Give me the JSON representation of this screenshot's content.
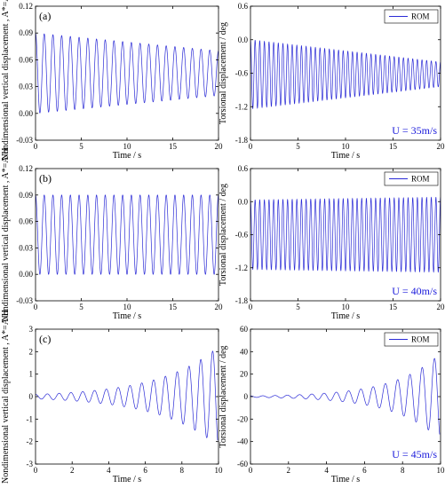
{
  "chart_data": [
    {
      "type": "line",
      "row": 0,
      "col": 0,
      "panel_label": "(a)",
      "xlabel": "Time / s",
      "ylabel": "Nondimensional vertical displacement , A*=A/H",
      "xlim": [
        0,
        20
      ],
      "ylim": [
        -0.03,
        0.12
      ],
      "xticks": [
        "0",
        "5",
        "10",
        "15",
        "20"
      ],
      "yticks": [
        "-0.03",
        "0.00",
        "0.03",
        "0.06",
        "0.09",
        "0.12"
      ],
      "series": [
        {
          "color": "#2b2bd6",
          "freq": 1.05,
          "mean": 0.045,
          "amp_start": 0.045,
          "amp_end": 0.025,
          "growth": "linear",
          "t_end": 20
        }
      ]
    },
    {
      "type": "line",
      "row": 0,
      "col": 1,
      "xlabel": "Time / s",
      "ylabel": "Torsional displacement / deg",
      "xlim": [
        0,
        20
      ],
      "ylim": [
        -1.8,
        0.6
      ],
      "xticks": [
        "0",
        "5",
        "10",
        "15",
        "20"
      ],
      "yticks": [
        "-1.8",
        "-1.2",
        "-0.6",
        "0.0",
        "0.6"
      ],
      "legend": [
        "ROM"
      ],
      "annotation": "U = 35m/s",
      "series": [
        {
          "name": "ROM",
          "color": "#2b2bd6",
          "freq": 2.05,
          "mean": -0.62,
          "amp_start": 0.62,
          "amp_end": 0.22,
          "growth": "linear",
          "t_end": 20
        }
      ]
    },
    {
      "type": "line",
      "row": 1,
      "col": 0,
      "panel_label": "(b)",
      "xlabel": "Time / s",
      "ylabel": "Nondimensional vertical displacement , A*=A/H",
      "xlim": [
        0,
        20
      ],
      "ylim": [
        -0.03,
        0.12
      ],
      "xticks": [
        "0",
        "5",
        "10",
        "15",
        "20"
      ],
      "yticks": [
        "-0.03",
        "0.00",
        "0.03",
        "0.06",
        "0.09",
        "0.12"
      ],
      "series": [
        {
          "color": "#2b2bd6",
          "freq": 1.05,
          "mean": 0.045,
          "amp_start": 0.045,
          "amp_end": 0.045,
          "growth": "linear",
          "t_end": 20
        }
      ]
    },
    {
      "type": "line",
      "row": 1,
      "col": 1,
      "xlabel": "Time / s",
      "ylabel": "Torsional displacement / deg",
      "xlim": [
        0,
        20
      ],
      "ylim": [
        -1.8,
        0.6
      ],
      "xticks": [
        "0",
        "5",
        "10",
        "15",
        "20"
      ],
      "yticks": [
        "-1.8",
        "-1.2",
        "-0.6",
        "0.0",
        "0.6"
      ],
      "legend": [
        "ROM"
      ],
      "annotation": "U = 40m/s",
      "series": [
        {
          "name": "ROM",
          "color": "#2b2bd6",
          "freq": 2.05,
          "mean": -0.6,
          "amp_start": 0.63,
          "amp_end": 0.68,
          "growth": "linear",
          "t_end": 20
        }
      ]
    },
    {
      "type": "line",
      "row": 2,
      "col": 0,
      "panel_label": "(c)",
      "xlabel": "Time / s",
      "ylabel": "Nondimensional vertical displacement , A*=A/H",
      "xlim": [
        0,
        10
      ],
      "ylim": [
        -3,
        3
      ],
      "xticks": [
        "0",
        "2",
        "4",
        "6",
        "8",
        "10"
      ],
      "yticks": [
        "-3",
        "-2",
        "-1",
        "0",
        "1",
        "2",
        "3"
      ],
      "series": [
        {
          "color": "#2b2bd6",
          "freq": 1.55,
          "mean": 0,
          "amp_start": 0.1,
          "amp_end": 2.2,
          "growth": "exp",
          "t_end": 9.95
        }
      ]
    },
    {
      "type": "line",
      "row": 2,
      "col": 1,
      "xlabel": "Time / s",
      "ylabel": "Torsional displacement / deg",
      "xlim": [
        0,
        10
      ],
      "ylim": [
        -60,
        60
      ],
      "xticks": [
        "0",
        "2",
        "4",
        "6",
        "8",
        "10"
      ],
      "yticks": [
        "-60",
        "-40",
        "-20",
        "0",
        "20",
        "40",
        "60"
      ],
      "legend": [
        "ROM"
      ],
      "annotation": "U = 45m/s",
      "series": [
        {
          "name": "ROM",
          "color": "#2b2bd6",
          "freq": 1.55,
          "mean": 0,
          "amp_start": 0.6,
          "amp_end": 38,
          "growth": "exp",
          "t_end": 9.95
        }
      ]
    }
  ]
}
